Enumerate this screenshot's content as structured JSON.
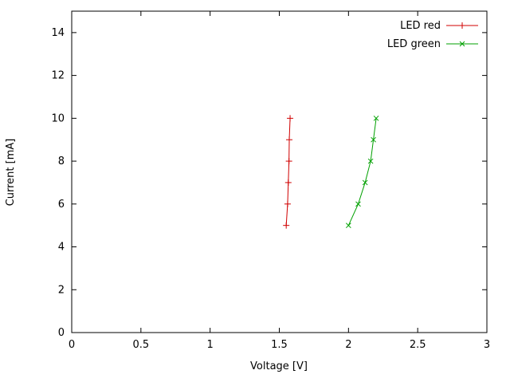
{
  "chart_data": {
    "type": "line",
    "title": "",
    "xlabel": "Voltage [V]",
    "ylabel": "Current [mA]",
    "xlim": [
      0,
      3
    ],
    "ylim": [
      0,
      15
    ],
    "xticks": [
      0,
      0.5,
      1,
      1.5,
      2,
      2.5,
      3
    ],
    "xtick_labels": [
      "0",
      "0.5",
      "1",
      "1.5",
      "2",
      "2.5",
      "3"
    ],
    "yticks": [
      0,
      2,
      4,
      6,
      8,
      10,
      12,
      14
    ],
    "ytick_labels": [
      "0",
      "2",
      "4",
      "6",
      "8",
      "10",
      "12",
      "14"
    ],
    "grid": false,
    "legend_position": "top-right-inside",
    "border_color": "#000000",
    "series": [
      {
        "name": "LED red",
        "color": "#d00000",
        "marker": "plus",
        "points": [
          [
            1.55,
            5
          ],
          [
            1.56,
            6
          ],
          [
            1.565,
            7
          ],
          [
            1.57,
            8
          ],
          [
            1.572,
            9
          ],
          [
            1.578,
            10
          ]
        ]
      },
      {
        "name": "LED green",
        "color": "#00a000",
        "marker": "cross",
        "points": [
          [
            2.0,
            5
          ],
          [
            2.07,
            6
          ],
          [
            2.12,
            7
          ],
          [
            2.16,
            8
          ],
          [
            2.18,
            9
          ],
          [
            2.2,
            10
          ]
        ]
      }
    ]
  }
}
